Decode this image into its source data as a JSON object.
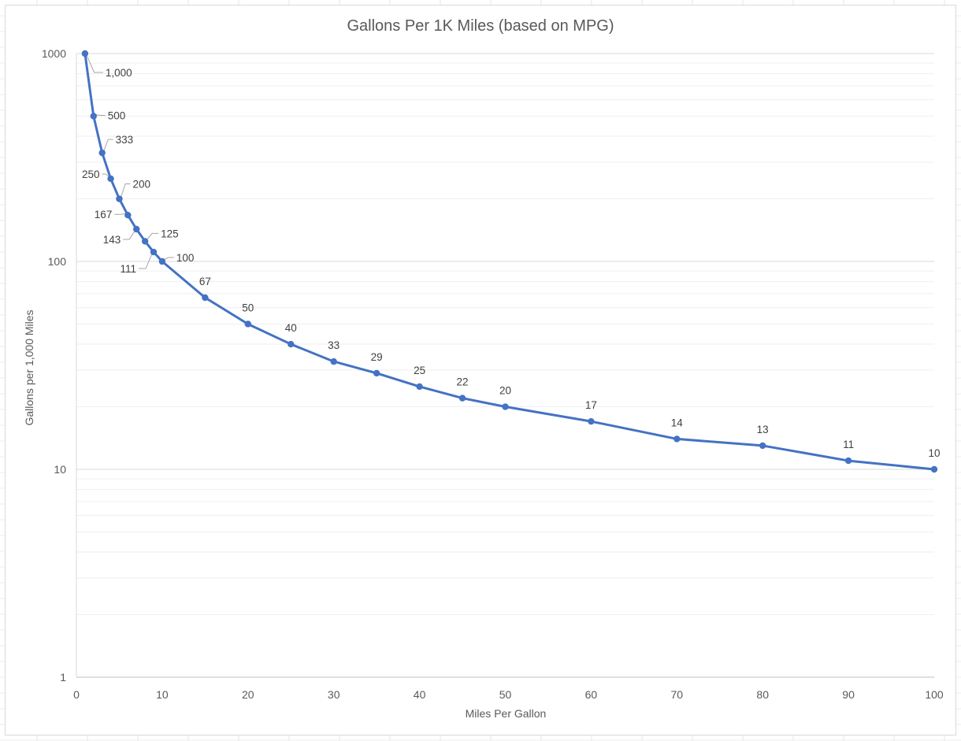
{
  "chart_data": {
    "type": "line",
    "title": "Gallons Per 1K Miles (based on MPG)",
    "xlabel": "Miles Per Gallon",
    "ylabel": "Gallons per 1,000 Miles",
    "xlim": [
      0,
      100
    ],
    "ylim": [
      1,
      1000
    ],
    "y_scale": "log",
    "grid": true,
    "legend": "none",
    "x_ticks": [
      "0",
      "10",
      "20",
      "30",
      "40",
      "50",
      "60",
      "70",
      "80",
      "90",
      "100"
    ],
    "y_ticks": [
      "1",
      "10",
      "100",
      "1000"
    ],
    "series": [
      {
        "color": "#4472C4",
        "x": [
          1,
          2,
          3,
          4,
          5,
          6,
          7,
          8,
          9,
          10,
          15,
          20,
          25,
          30,
          35,
          40,
          45,
          50,
          60,
          70,
          80,
          90,
          100
        ],
        "values": [
          1000,
          500,
          333,
          250,
          200,
          167,
          143,
          125,
          111,
          100,
          67,
          50,
          40,
          33,
          29,
          25,
          22,
          20,
          17,
          14,
          13,
          11,
          10
        ],
        "labels": [
          "1,000",
          "500",
          "333",
          "250",
          "200",
          "167",
          "143",
          "125",
          "111",
          "100",
          "67",
          "50",
          "40",
          "33",
          "29",
          "25",
          "22",
          "20",
          "17",
          "14",
          "13",
          "11",
          "10"
        ]
      }
    ]
  }
}
